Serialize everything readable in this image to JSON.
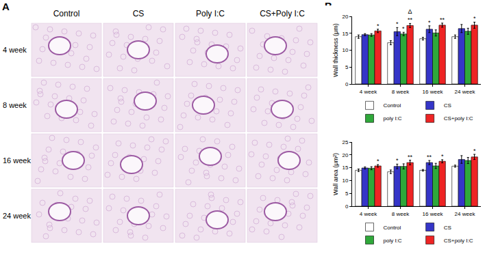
{
  "panel_labels": [
    "A",
    "B"
  ],
  "image_grid": {
    "columns": [
      "Control",
      "CS",
      "Poly I:C",
      "CS+Poly I:C"
    ],
    "rows": [
      "4 week",
      "8 week",
      "16 week",
      "24 week"
    ]
  },
  "chart_data": [
    {
      "type": "bar",
      "y_label": "Wall thickness (μm)",
      "categories": [
        "4 week",
        "8 week",
        "16 week",
        "24 week"
      ],
      "ylim": [
        0,
        20
      ],
      "yticks": [
        0,
        5,
        10,
        15,
        20
      ],
      "grid": false,
      "legend": "bottom",
      "series": [
        {
          "name": "Control",
          "color": "#ffffff",
          "values": [
            14.0,
            12.2,
            13.4,
            14.0
          ],
          "errors": [
            0.5,
            0.6,
            0.4,
            0.5
          ]
        },
        {
          "name": "CS",
          "color": "#3535c8",
          "values": [
            14.6,
            15.5,
            16.2,
            16.4
          ],
          "errors": [
            0.3,
            1.2,
            1.0,
            1.2
          ]
        },
        {
          "name": "poly I:C",
          "color": "#2fa83a",
          "values": [
            14.5,
            14.8,
            15.1,
            15.6
          ],
          "errors": [
            0.4,
            0.5,
            0.9,
            0.9
          ]
        },
        {
          "name": "CS+poly I:C",
          "color": "#ee2424",
          "values": [
            15.7,
            17.3,
            17.4,
            17.4
          ],
          "errors": [
            0.5,
            0.6,
            0.6,
            0.9
          ]
        }
      ],
      "annotations": [
        {
          "category": "4 week",
          "series": "CS+poly I:C",
          "texts": [
            "*"
          ]
        },
        {
          "category": "8 week",
          "series": "CS",
          "texts": [
            "*"
          ]
        },
        {
          "category": "8 week",
          "series": "poly I:C",
          "texts": [
            "*"
          ]
        },
        {
          "category": "8 week",
          "series": "CS+poly I:C",
          "texts": [
            "Δ",
            "**"
          ]
        },
        {
          "category": "16 week",
          "series": "CS",
          "texts": [
            "*"
          ]
        },
        {
          "category": "16 week",
          "series": "CS+poly I:C",
          "texts": [
            "**"
          ]
        },
        {
          "category": "24 week",
          "series": "CS+poly I:C",
          "texts": [
            "*"
          ]
        }
      ]
    },
    {
      "type": "bar",
      "y_label": "Wall area (μm²)",
      "categories": [
        "4 week",
        "8 week",
        "16 week",
        "24 week"
      ],
      "ylim": [
        0,
        25
      ],
      "yticks": [
        0,
        5,
        10,
        15,
        20,
        25
      ],
      "grid": false,
      "legend": "bottom",
      "series": [
        {
          "name": "Control",
          "color": "#ffffff",
          "values": [
            14.0,
            13.4,
            14.0,
            15.6
          ],
          "errors": [
            0.5,
            0.7,
            0.3,
            0.4
          ]
        },
        {
          "name": "CS",
          "color": "#3535c8",
          "values": [
            14.9,
            15.5,
            17.0,
            18.2
          ],
          "errors": [
            0.4,
            0.9,
            0.8,
            1.5
          ]
        },
        {
          "name": "poly I:C",
          "color": "#2fa83a",
          "values": [
            14.8,
            15.5,
            15.7,
            17.8
          ],
          "errors": [
            0.6,
            1.0,
            1.0,
            1.2
          ]
        },
        {
          "name": "CS+poly I:C",
          "color": "#ee2424",
          "values": [
            15.7,
            17.0,
            17.5,
            19.2
          ],
          "errors": [
            0.5,
            0.9,
            0.6,
            1.0
          ]
        }
      ],
      "annotations": [
        {
          "category": "4 week",
          "series": "CS+poly I:C",
          "texts": [
            "*"
          ]
        },
        {
          "category": "8 week",
          "series": "CS",
          "texts": [
            "*"
          ]
        },
        {
          "category": "8 week",
          "series": "CS+poly I:C",
          "texts": [
            "**"
          ]
        },
        {
          "category": "16 week",
          "series": "CS",
          "texts": [
            "**"
          ]
        },
        {
          "category": "16 week",
          "series": "CS+poly I:C",
          "texts": [
            "*"
          ]
        },
        {
          "category": "24 week",
          "series": "CS+poly I:C",
          "texts": [
            "*"
          ]
        }
      ]
    }
  ]
}
